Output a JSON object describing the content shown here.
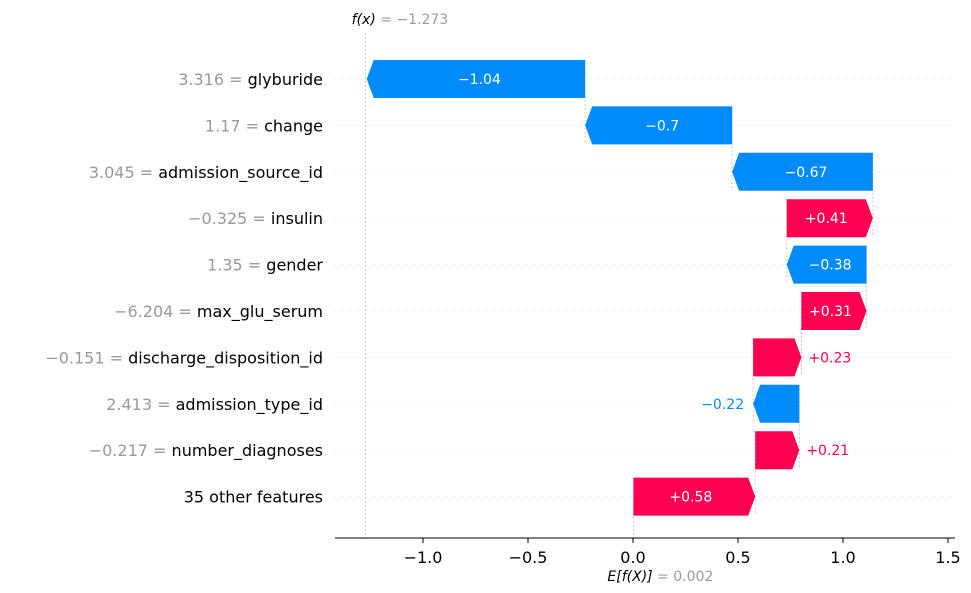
{
  "chart_data": {
    "type": "bar",
    "subtype": "waterfall",
    "top_annotation": {
      "label": "f(x)",
      "equals": "=",
      "value": -1.273,
      "value_text": "−1.273"
    },
    "bottom_annotation": {
      "label": "E[f(X)]",
      "equals": "=",
      "value": 0.002,
      "value_text": "0.002"
    },
    "base_value": 0.002,
    "output_value": -1.273,
    "xlim": [
      -1.42,
      1.52
    ],
    "xticks": [
      {
        "value": -1.0,
        "label": "−1.0"
      },
      {
        "value": -0.5,
        "label": "−0.5"
      },
      {
        "value": 0.0,
        "label": "0.0"
      },
      {
        "value": 0.5,
        "label": "0.5"
      },
      {
        "value": 1.0,
        "label": "1.0"
      },
      {
        "value": 1.5,
        "label": "1.5"
      }
    ],
    "positive_color": "#ff0051",
    "negative_color": "#008bfb",
    "features": [
      {
        "value_text": "3.316",
        "name": "glyburide",
        "shap": -1.04,
        "label": "−1.04"
      },
      {
        "value_text": "1.17",
        "name": "change",
        "shap": -0.7,
        "label": "−0.7"
      },
      {
        "value_text": "3.045",
        "name": "admission_source_id",
        "shap": -0.67,
        "label": "−0.67"
      },
      {
        "value_text": "−0.325",
        "name": "insulin",
        "shap": 0.41,
        "label": "+0.41"
      },
      {
        "value_text": "1.35",
        "name": "gender",
        "shap": -0.38,
        "label": "−0.38"
      },
      {
        "value_text": "−6.204",
        "name": "max_glu_serum",
        "shap": 0.31,
        "label": "+0.31"
      },
      {
        "value_text": "−0.151",
        "name": "discharge_disposition_id",
        "shap": 0.23,
        "label": "+0.23"
      },
      {
        "value_text": "2.413",
        "name": "admission_type_id",
        "shap": -0.22,
        "label": "−0.22"
      },
      {
        "value_text": "−0.217",
        "name": "number_diagnoses",
        "shap": 0.21,
        "label": "+0.21"
      },
      {
        "value_text": "",
        "name": "35 other features",
        "shap": 0.58,
        "label": "+0.58"
      }
    ]
  }
}
